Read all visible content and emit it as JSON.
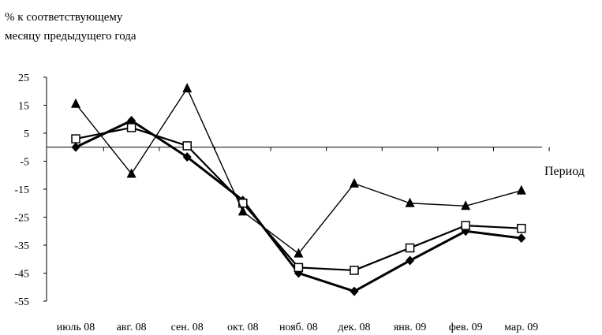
{
  "chart_data": {
    "type": "line",
    "ylabel_lines": [
      "% к соответствующему",
      "месяцу предыдущего года"
    ],
    "xlabel": "Период",
    "categories": [
      "июль 08",
      "авг. 08",
      "сен. 08",
      "окт. 08",
      "нояб. 08",
      "дек. 08",
      "янв. 09",
      "фев. 09",
      "мар. 09"
    ],
    "yticks": [
      25,
      15,
      5,
      -5,
      -15,
      -25,
      -35,
      -45,
      -55
    ],
    "ylim": [
      -55,
      25
    ],
    "grid": false,
    "legend": "none",
    "series": [
      {
        "marker": "diamond",
        "line_width": 3,
        "color": "#000000",
        "values": [
          0,
          9.5,
          -3.5,
          -19,
          -45,
          -51.5,
          -40.5,
          -30,
          -32.5
        ]
      },
      {
        "marker": "square-open",
        "line_width": 2.2,
        "color": "#000000",
        "values": [
          3,
          7,
          0.5,
          -20,
          -43,
          -44,
          -36,
          -28,
          -29
        ]
      },
      {
        "marker": "triangle",
        "line_width": 1.4,
        "color": "#000000",
        "values": [
          15.5,
          -9.5,
          21,
          -23,
          -38,
          -13,
          -20,
          -21,
          -15.5
        ]
      }
    ]
  }
}
